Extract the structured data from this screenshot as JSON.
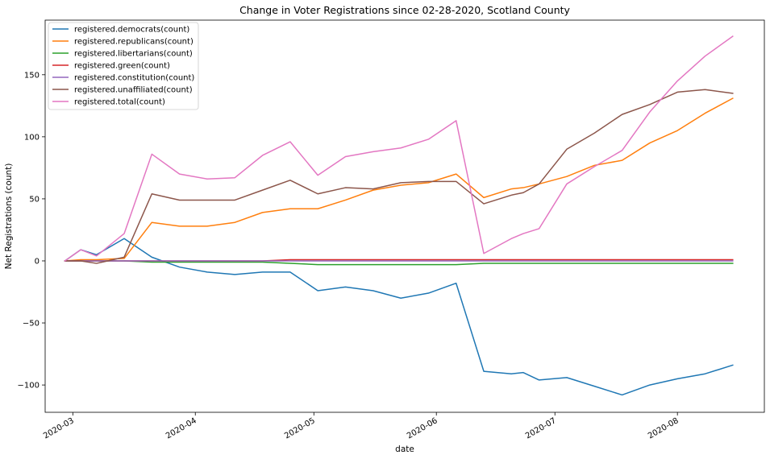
{
  "chart_data": {
    "type": "line",
    "title": "Change in Voter Registrations since 02-28-2020, Scotland County",
    "xlabel": "date",
    "ylabel": "Net Registrations (count)",
    "x_type": "date",
    "xlim": [
      "2020-02-23",
      "2020-08-23"
    ],
    "ylim": [
      -122,
      194
    ],
    "yticks": [
      -100,
      -50,
      0,
      50,
      100,
      150
    ],
    "ytick_labels": [
      "−100",
      "−50",
      "0",
      "50",
      "100",
      "150"
    ],
    "xticks": [
      "2020-03-01",
      "2020-04-01",
      "2020-05-01",
      "2020-06-01",
      "2020-07-01",
      "2020-08-01"
    ],
    "xtick_labels": [
      "2020-03",
      "2020-04",
      "2020-05",
      "2020-06",
      "2020-07",
      "2020-08"
    ],
    "grid": false,
    "legend_position": "top-left",
    "x": [
      "2020-02-28",
      "2020-03-03",
      "2020-03-07",
      "2020-03-14",
      "2020-03-21",
      "2020-03-28",
      "2020-04-04",
      "2020-04-11",
      "2020-04-18",
      "2020-04-25",
      "2020-05-02",
      "2020-05-09",
      "2020-05-16",
      "2020-05-23",
      "2020-05-30",
      "2020-06-06",
      "2020-06-13",
      "2020-06-20",
      "2020-06-23",
      "2020-06-27",
      "2020-07-04",
      "2020-07-11",
      "2020-07-18",
      "2020-07-25",
      "2020-08-01",
      "2020-08-08",
      "2020-08-15"
    ],
    "series": [
      {
        "name": "registered.democrats(count)",
        "color": "#1f77b4",
        "values": [
          0,
          9,
          5,
          18,
          3,
          -5,
          -9,
          -11,
          -9,
          -9,
          -24,
          -21,
          -24,
          -30,
          -26,
          -18,
          -89,
          -91,
          -90,
          -96,
          -94,
          -101,
          -108,
          -100,
          -95,
          -91,
          -84
        ]
      },
      {
        "name": "registered.republicans(count)",
        "color": "#ff7f0e",
        "values": [
          0,
          1,
          1,
          2,
          31,
          28,
          28,
          31,
          39,
          42,
          42,
          49,
          57,
          61,
          63,
          70,
          51,
          58,
          59,
          62,
          68,
          77,
          81,
          95,
          105,
          119,
          131
        ]
      },
      {
        "name": "registered.libertarians(count)",
        "color": "#2ca02c",
        "values": [
          0,
          0,
          0,
          0,
          -1,
          -1,
          -1,
          -1,
          -1,
          -2,
          -3,
          -3,
          -3,
          -3,
          -3,
          -3,
          -2,
          -2,
          -2,
          -2,
          -2,
          -2,
          -2,
          -2,
          -2,
          -2,
          -2
        ]
      },
      {
        "name": "registered.green(count)",
        "color": "#d62728",
        "values": [
          0,
          0,
          0,
          0,
          0,
          0,
          0,
          0,
          0,
          1,
          1,
          1,
          1,
          1,
          1,
          1,
          1,
          1,
          1,
          1,
          1,
          1,
          1,
          1,
          1,
          1,
          1
        ]
      },
      {
        "name": "registered.constitution(count)",
        "color": "#9467bd",
        "values": [
          0,
          0,
          0,
          0,
          0,
          0,
          0,
          0,
          0,
          0,
          0,
          0,
          0,
          0,
          0,
          0,
          0,
          0,
          0,
          0,
          0,
          0,
          0,
          0,
          0,
          0,
          0
        ]
      },
      {
        "name": "registered.unaffiliated(count)",
        "color": "#8c564b",
        "values": [
          0,
          0,
          -2,
          3,
          54,
          49,
          49,
          49,
          57,
          65,
          54,
          59,
          58,
          63,
          64,
          64,
          46,
          53,
          55,
          62,
          90,
          103,
          118,
          126,
          136,
          138,
          135
        ]
      },
      {
        "name": "registered.total(count)",
        "color": "#e377c2",
        "values": [
          0,
          9,
          4,
          22,
          86,
          70,
          66,
          67,
          85,
          96,
          69,
          84,
          88,
          91,
          98,
          113,
          6,
          18,
          22,
          26,
          62,
          76,
          89,
          120,
          145,
          165,
          181
        ]
      }
    ]
  }
}
